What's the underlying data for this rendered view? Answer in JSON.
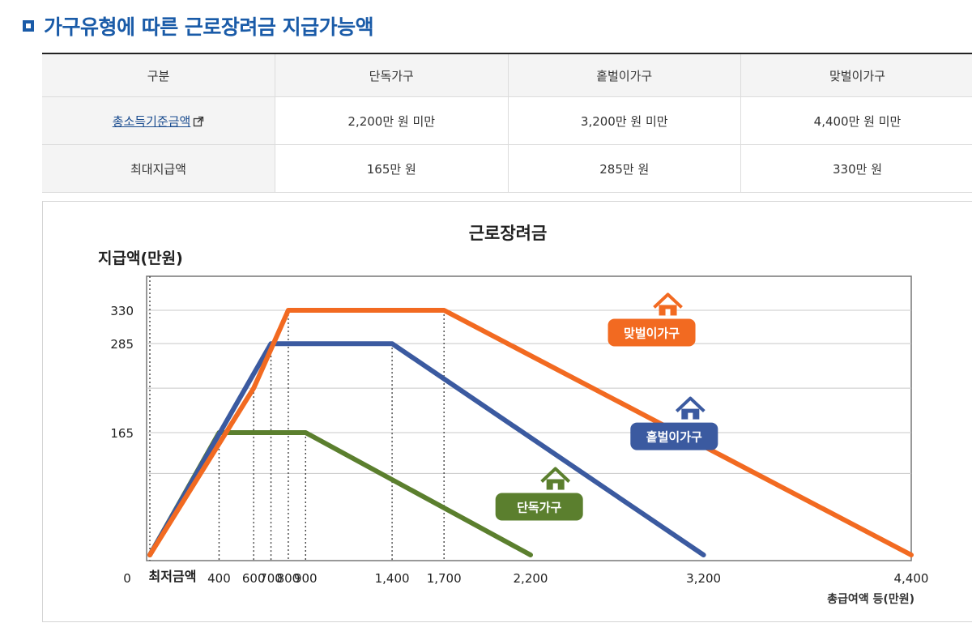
{
  "header": {
    "title": "가구유형에 따른 근로장려금 지급가능액"
  },
  "table": {
    "headers": [
      "구분",
      "단독가구",
      "홑벌이가구",
      "맞벌이가구"
    ],
    "rows": [
      {
        "label": "총소득기준금액",
        "cells": [
          "2,200만 원 미만",
          "3,200만 원 미만",
          "4,400만 원 미만"
        ]
      },
      {
        "label": "최대지급액",
        "cells": [
          "165만 원",
          "285만 원",
          "330만 원"
        ]
      }
    ]
  },
  "chart_data": {
    "type": "line",
    "title": "근로장려금",
    "ylabel": "지급액(만원)",
    "xlabel": "총급여액 등(만원)",
    "xlim": [
      0,
      4400
    ],
    "ylim": [
      0,
      330
    ],
    "x_tick_labels": [
      {
        "x": 0,
        "label": "0"
      },
      {
        "x": 400,
        "label": "400"
      },
      {
        "x": 600,
        "label": "600"
      },
      {
        "x": 700,
        "label": "700"
      },
      {
        "x": 800,
        "label": "800"
      },
      {
        "x": 900,
        "label": "900"
      },
      {
        "x": 1400,
        "label": "1,400"
      },
      {
        "x": 1700,
        "label": "1,700"
      },
      {
        "x": 2200,
        "label": "2,200"
      },
      {
        "x": 3200,
        "label": "3,200"
      },
      {
        "x": 4400,
        "label": "4,400"
      }
    ],
    "min_label": "최저금액",
    "y_tick_labels": [
      {
        "y": 0,
        "label": "0"
      },
      {
        "y": 165,
        "label": "165"
      },
      {
        "y": 285,
        "label": "285"
      },
      {
        "y": 330,
        "label": "330"
      }
    ],
    "series": [
      {
        "name": "맞벌이가구",
        "color": "#f26a21",
        "points": [
          [
            0,
            0
          ],
          [
            600,
            225
          ],
          [
            800,
            330
          ],
          [
            1700,
            330
          ],
          [
            4400,
            0
          ]
        ]
      },
      {
        "name": "홑벌이가구",
        "color": "#3b5aa0",
        "points": [
          [
            0,
            0
          ],
          [
            700,
            285
          ],
          [
            1400,
            285
          ],
          [
            3200,
            0
          ]
        ]
      },
      {
        "name": "단독가구",
        "color": "#5b7f2e",
        "points": [
          [
            0,
            0
          ],
          [
            400,
            165
          ],
          [
            900,
            165
          ],
          [
            2200,
            0
          ]
        ]
      }
    ],
    "grid": true
  }
}
